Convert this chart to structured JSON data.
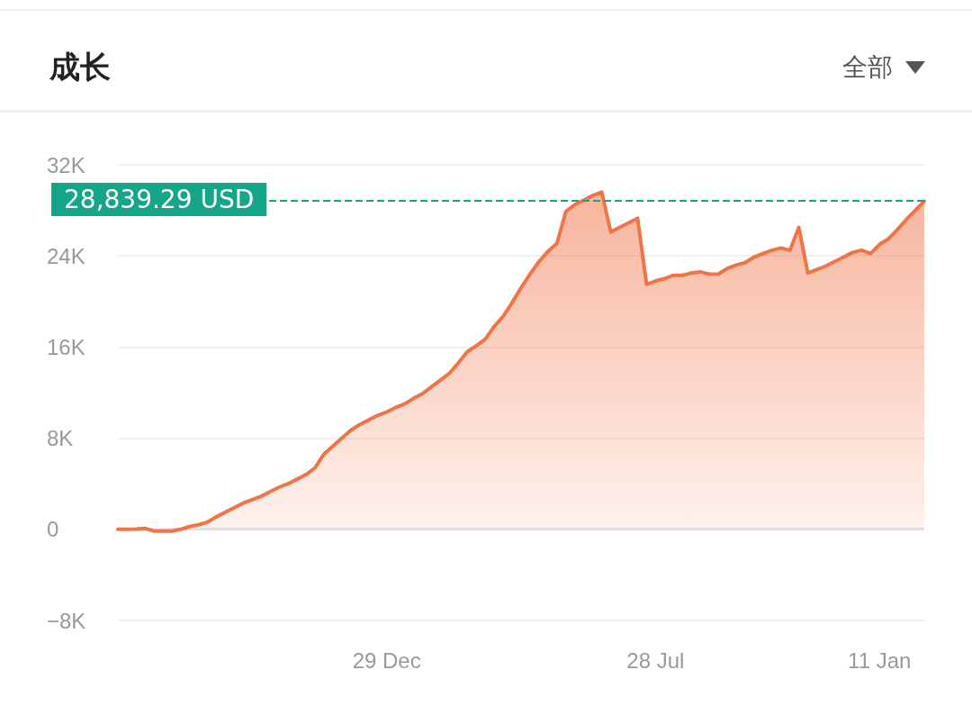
{
  "chart_data": {
    "type": "area",
    "title": "成长",
    "annotations": [
      "全部"
    ],
    "categories": [
      null,
      null,
      null,
      null,
      null,
      null,
      null,
      null,
      null,
      null,
      null,
      null,
      null,
      null,
      null,
      null,
      null,
      null,
      null,
      null,
      null,
      null,
      null,
      null,
      null,
      null,
      null,
      null,
      null,
      null,
      "29 Dec",
      null,
      null,
      null,
      null,
      null,
      null,
      null,
      null,
      null,
      null,
      null,
      null,
      null,
      null,
      null,
      null,
      null,
      null,
      null,
      null,
      null,
      null,
      null,
      null,
      null,
      null,
      null,
      null,
      null,
      "28 Jul",
      null,
      null,
      null,
      null,
      null,
      null,
      null,
      null,
      null,
      null,
      null,
      null,
      null,
      null,
      null,
      null,
      null,
      null,
      null,
      null,
      null,
      null,
      null,
      null,
      "11 Jan",
      null,
      null,
      null,
      null,
      null
    ],
    "series": [
      {
        "color": "#f07446",
        "values": [
          0,
          0,
          30,
          80,
          -150,
          -150,
          -150,
          0,
          240,
          400,
          630,
          1100,
          1500,
          1900,
          2300,
          2600,
          2900,
          3300,
          3700,
          4000,
          4400,
          4800,
          5400,
          6600,
          7300,
          8000,
          8700,
          9200,
          9600,
          10000,
          10300,
          10700,
          11000,
          11500,
          11900,
          12500,
          13100,
          13700,
          14600,
          15600,
          16100,
          16700,
          17800,
          18700,
          19900,
          21200,
          22400,
          23500,
          24400,
          25100,
          27900,
          28500,
          28900,
          29300,
          29600,
          26100,
          26500,
          26900,
          27300,
          21500,
          21800,
          22000,
          22300,
          22300,
          22500,
          22600,
          22400,
          22400,
          22900,
          23200,
          23400,
          23900,
          24200,
          24500,
          24700,
          24500,
          26500,
          22500,
          22800,
          23100,
          23500,
          23900,
          24300,
          24500,
          24200,
          25000,
          25500,
          26300,
          27200,
          28000,
          28800
        ]
      }
    ],
    "ylim": [
      -8000,
      32000
    ],
    "yticks": [
      {
        "value": -8000,
        "label": "−8K"
      },
      {
        "value": 0,
        "label": "0"
      },
      {
        "value": 8000,
        "label": "8K"
      },
      {
        "value": 16000,
        "label": "16K"
      },
      {
        "value": 24000,
        "label": "24K"
      },
      {
        "value": 32000,
        "label": "32K"
      }
    ],
    "ref_lines": [
      {
        "axis": "y",
        "value": 28839.29,
        "label": "28,839.29 USD",
        "color": "#15a589",
        "line_style": "dashed"
      }
    ],
    "grid": "y",
    "marker": "none",
    "line_style": "solid"
  }
}
